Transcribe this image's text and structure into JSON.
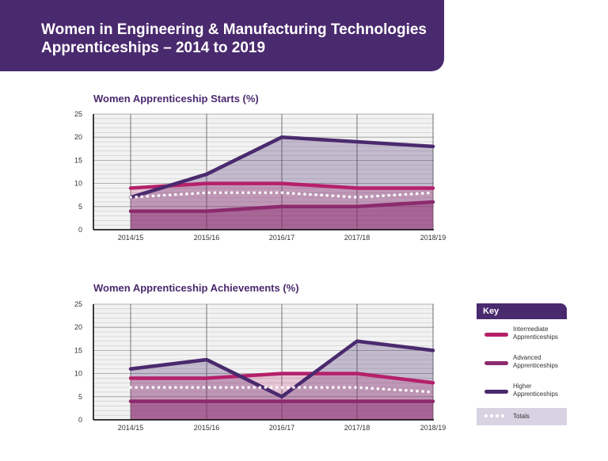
{
  "header": {
    "title": "Women in Engineering & Manufacturing Technologies Apprenticeships – 2014 to 2019"
  },
  "chart_data": [
    {
      "type": "line",
      "title": "Women Apprenticeship Starts (%)",
      "categories": [
        "2014/15",
        "2015/16",
        "2016/17",
        "2017/18",
        "2018/19"
      ],
      "ylim": [
        0,
        25
      ],
      "yticks": [
        "0",
        "5",
        "10",
        "15",
        "20",
        "25"
      ],
      "series": [
        {
          "name": "Intermediate Apprenticeships",
          "values": [
            9,
            10,
            10,
            9,
            9
          ],
          "color": "#b5206a"
        },
        {
          "name": "Advanced Apprenticeships",
          "values": [
            4,
            4,
            5,
            5,
            6
          ],
          "color": "#8c2a6e"
        },
        {
          "name": "Higher Apprenticeships",
          "values": [
            7,
            12,
            20,
            19,
            18
          ],
          "color": "#4a2a6e"
        },
        {
          "name": "Totals",
          "values": [
            7,
            8,
            8,
            7,
            8
          ],
          "color": "#ffffff"
        }
      ]
    },
    {
      "type": "line",
      "title": "Women Apprenticeship Achievements (%)",
      "categories": [
        "2014/15",
        "2015/16",
        "2016/17",
        "2017/18",
        "2018/19"
      ],
      "ylim": [
        0,
        25
      ],
      "yticks": [
        "0",
        "5",
        "10",
        "15",
        "20",
        "25"
      ],
      "series": [
        {
          "name": "Intermediate Apprenticeships",
          "values": [
            9,
            9,
            10,
            10,
            8
          ],
          "color": "#b5206a"
        },
        {
          "name": "Advanced Apprenticeships",
          "values": [
            4,
            4,
            4,
            4,
            4
          ],
          "color": "#8c2a6e"
        },
        {
          "name": "Higher Apprenticeships",
          "values": [
            11,
            13,
            5,
            17,
            15
          ],
          "color": "#4a2a6e"
        },
        {
          "name": "Totals",
          "values": [
            7,
            7,
            7,
            7,
            6
          ],
          "color": "#ffffff"
        }
      ]
    }
  ],
  "key": {
    "title": "Key",
    "items": [
      {
        "label": "Intermediate Apprenticeships",
        "color": "#b5206a"
      },
      {
        "label": "Advanced Apprenticeships",
        "color": "#8c2a6e"
      },
      {
        "label": "Higher Apprenticeships",
        "color": "#4a2a6e"
      }
    ],
    "totals_label": "Totals"
  }
}
